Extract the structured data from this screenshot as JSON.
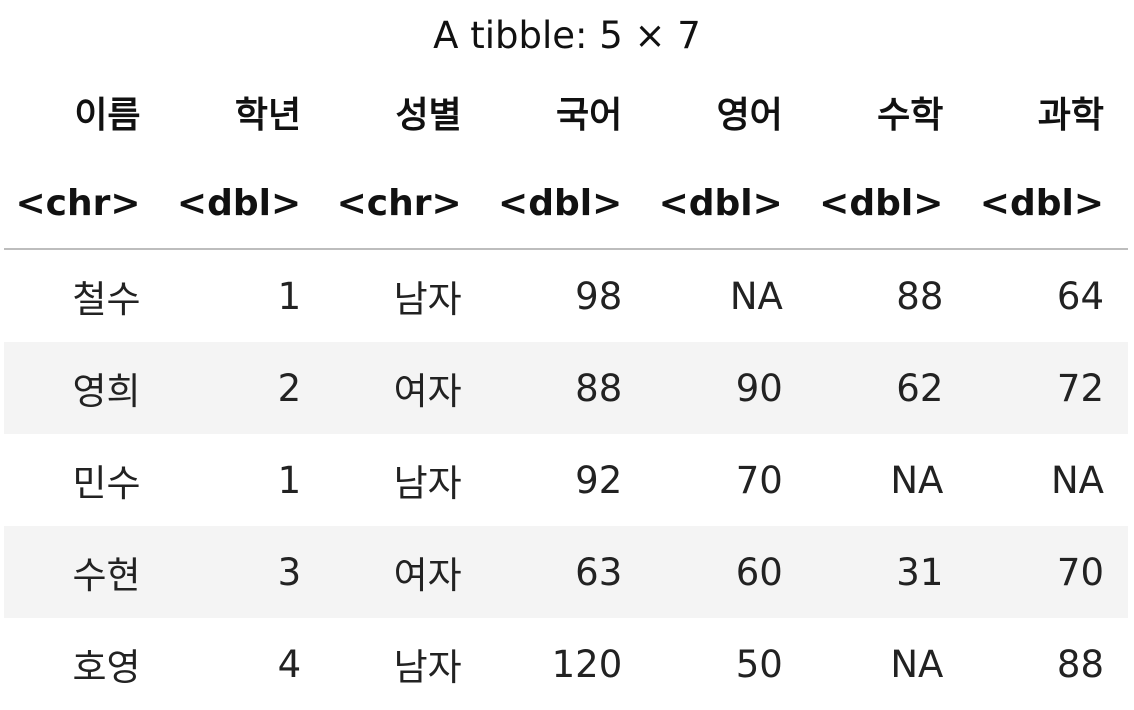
{
  "caption": "A tibble: 5 × 7",
  "columns": [
    {
      "name": "이름",
      "type": "<chr>"
    },
    {
      "name": "학년",
      "type": "<dbl>"
    },
    {
      "name": "성별",
      "type": "<chr>"
    },
    {
      "name": "국어",
      "type": "<dbl>"
    },
    {
      "name": "영어",
      "type": "<dbl>"
    },
    {
      "name": "수학",
      "type": "<dbl>"
    },
    {
      "name": "과학",
      "type": "<dbl>"
    }
  ],
  "rows": [
    [
      "철수",
      "1",
      "남자",
      "98",
      "NA",
      "88",
      "64"
    ],
    [
      "영희",
      "2",
      "여자",
      "88",
      "90",
      "62",
      "72"
    ],
    [
      "민수",
      "1",
      "남자",
      "92",
      "70",
      "NA",
      "NA"
    ],
    [
      "수현",
      "3",
      "여자",
      "63",
      "60",
      "31",
      "70"
    ],
    [
      "호영",
      "4",
      "남자",
      "120",
      "50",
      "NA",
      "88"
    ]
  ]
}
